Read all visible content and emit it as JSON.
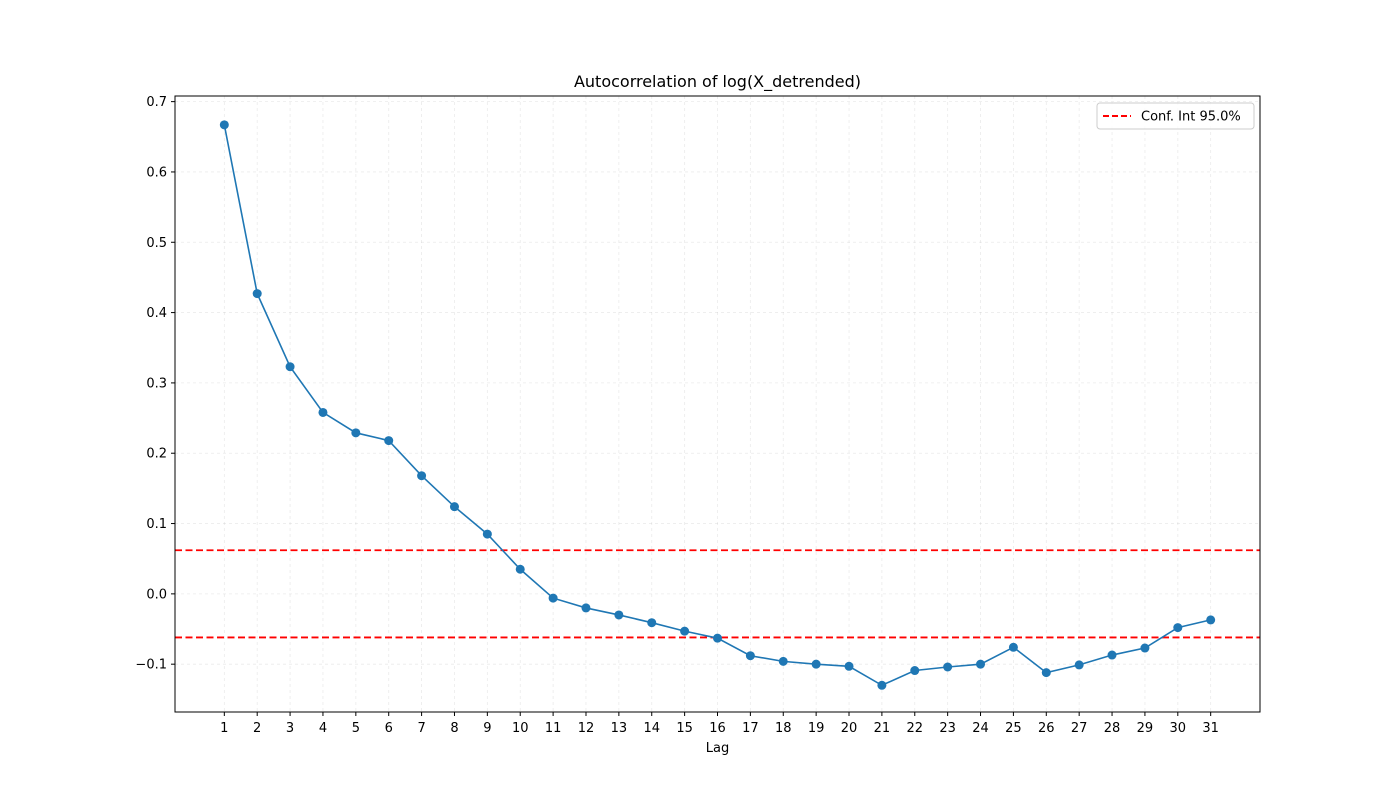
{
  "chart_data": {
    "type": "line",
    "title": "Autocorrelation of log(X_detrended)",
    "xlabel": "Lag",
    "ylabel": "",
    "x": [
      1,
      2,
      3,
      4,
      5,
      6,
      7,
      8,
      9,
      10,
      11,
      12,
      13,
      14,
      15,
      16,
      17,
      18,
      19,
      20,
      21,
      22,
      23,
      24,
      25,
      26,
      27,
      28,
      29,
      30,
      31
    ],
    "x_ticks": [
      "1",
      "2",
      "3",
      "4",
      "5",
      "6",
      "7",
      "8",
      "9",
      "10",
      "11",
      "12",
      "13",
      "14",
      "15",
      "16",
      "17",
      "18",
      "19",
      "20",
      "21",
      "22",
      "23",
      "24",
      "25",
      "26",
      "27",
      "28",
      "29",
      "30",
      "31"
    ],
    "y_ticks": [
      -0.1,
      0.0,
      0.1,
      0.2,
      0.3,
      0.4,
      0.5,
      0.6,
      0.7
    ],
    "y_tick_labels": [
      "−0.1",
      "0.0",
      "0.1",
      "0.2",
      "0.3",
      "0.4",
      "0.5",
      "0.6",
      "0.7"
    ],
    "xlim": [
      -0.5,
      32.5
    ],
    "ylim": [
      -0.168,
      0.708
    ],
    "grid": true,
    "series": [
      {
        "values": [
          0.667,
          0.427,
          0.323,
          0.258,
          0.229,
          0.218,
          0.168,
          0.124,
          0.085,
          0.035,
          -0.006,
          -0.02,
          -0.03,
          -0.041,
          -0.053,
          -0.063,
          -0.088,
          -0.096,
          -0.1,
          -0.103,
          -0.13,
          -0.109,
          -0.104,
          -0.1,
          -0.076,
          -0.112,
          -0.101,
          -0.087,
          -0.077,
          -0.048,
          -0.037
        ],
        "color": "#1f77b4",
        "marker": "circle"
      }
    ],
    "confidence_interval": {
      "label": "Conf. Int 95.0%",
      "upper": 0.062,
      "lower": -0.062,
      "color": "#ff0000",
      "style": "dashed"
    },
    "legend": {
      "position": "top-right",
      "entries": [
        "Conf. Int 95.0%"
      ]
    }
  }
}
